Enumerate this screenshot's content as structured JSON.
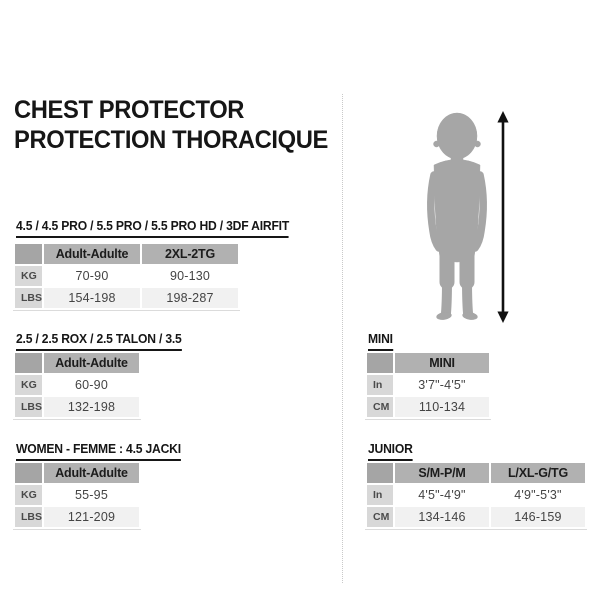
{
  "title": {
    "line1": "CHEST PROTECTOR",
    "line2": "PROTECTION THORACIQUE"
  },
  "tables": {
    "adult_45": {
      "heading": "4.5 / 4.5 PRO / 5.5 PRO / 5.5 PRO HD / 3DF AIRFIT",
      "columns": [
        "Adult-Adulte",
        "2XL-2TG"
      ],
      "rows": [
        {
          "label": "KG",
          "values": [
            "70-90",
            "90-130"
          ]
        },
        {
          "label": "LBS",
          "values": [
            "154-198",
            "198-287"
          ]
        }
      ]
    },
    "adult_25": {
      "heading": "2.5 / 2.5 ROX / 2.5 TALON / 3.5",
      "columns": [
        "Adult-Adulte"
      ],
      "rows": [
        {
          "label": "KG",
          "values": [
            "60-90"
          ]
        },
        {
          "label": "LBS",
          "values": [
            "132-198"
          ]
        }
      ]
    },
    "women": {
      "heading": "WOMEN - FEMME : 4.5 JACKI",
      "columns": [
        "Adult-Adulte"
      ],
      "rows": [
        {
          "label": "KG",
          "values": [
            "55-95"
          ]
        },
        {
          "label": "LBS",
          "values": [
            "121-209"
          ]
        }
      ]
    },
    "mini": {
      "heading": "MINI",
      "columns": [
        "MINI"
      ],
      "rows": [
        {
          "label": "In",
          "values": [
            "3'7\"-4'5\""
          ]
        },
        {
          "label": "CM",
          "values": [
            "110-134"
          ]
        }
      ]
    },
    "junior": {
      "heading": "JUNIOR",
      "columns": [
        "S/M-P/M",
        "L/XL-G/TG"
      ],
      "rows": [
        {
          "label": "In",
          "values": [
            "4'5\"-4'9\"",
            "4'9\"-5'3\""
          ]
        },
        {
          "label": "CM",
          "values": [
            "134-146",
            "146-159"
          ]
        }
      ]
    }
  },
  "icons": {
    "figure": "child-height-silhouette",
    "arrow": "vertical-double-arrow"
  },
  "colors": {
    "heading_text": "#161616",
    "header_bg": "#b1b1b1",
    "corner_bg": "#a5a5a5",
    "label_bg": "#d8d8d8",
    "row_alt_bg": "#f1f1f1",
    "row_bg": "#ffffff",
    "data_text": "#444444",
    "silhouette": "#a6a6a6",
    "arrow": "#111111",
    "divider": "#c9c9c9"
  }
}
